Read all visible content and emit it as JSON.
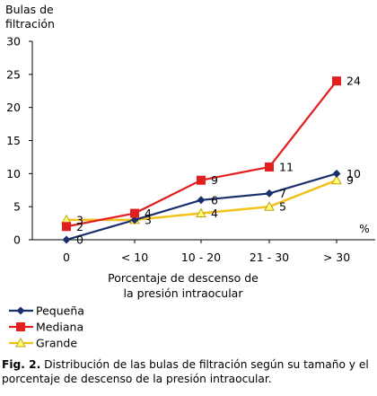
{
  "chart_data": {
    "type": "line",
    "ylabel": "Bulas de filtración",
    "xlabel": "Porcentaje de descenso de la presión intraocular",
    "x_unit": "%",
    "categories": [
      "0",
      "< 10",
      "10 - 20",
      "21 - 30",
      "> 30"
    ],
    "ylim": [
      0,
      30
    ],
    "yticks": [
      0,
      5,
      10,
      15,
      20,
      25,
      30
    ],
    "series": [
      {
        "name": "Pequeña",
        "values": [
          0,
          3,
          6,
          7,
          10
        ],
        "labels": [
          "0",
          "",
          "6",
          "7",
          "10"
        ],
        "color": "#1a2f6e",
        "marker": "diamond"
      },
      {
        "name": "Mediana",
        "values": [
          2,
          4,
          9,
          11,
          24
        ],
        "labels": [
          "2",
          "4",
          "9",
          "11",
          "24"
        ],
        "color": "#e31e1e",
        "marker": "square"
      },
      {
        "name": "Grande",
        "values": [
          3,
          3,
          4,
          5,
          9
        ],
        "labels": [
          "3",
          "3",
          "4",
          "5",
          "9"
        ],
        "color": "#f2c21b",
        "marker": "triangle"
      }
    ],
    "legend_position": "bottom-left",
    "grid": false
  },
  "caption": {
    "label": "Fig. 2.",
    "text": "Distribución de las bulas de filtración según su tamaño y el porcentaje de descenso de la presión intraocular."
  }
}
